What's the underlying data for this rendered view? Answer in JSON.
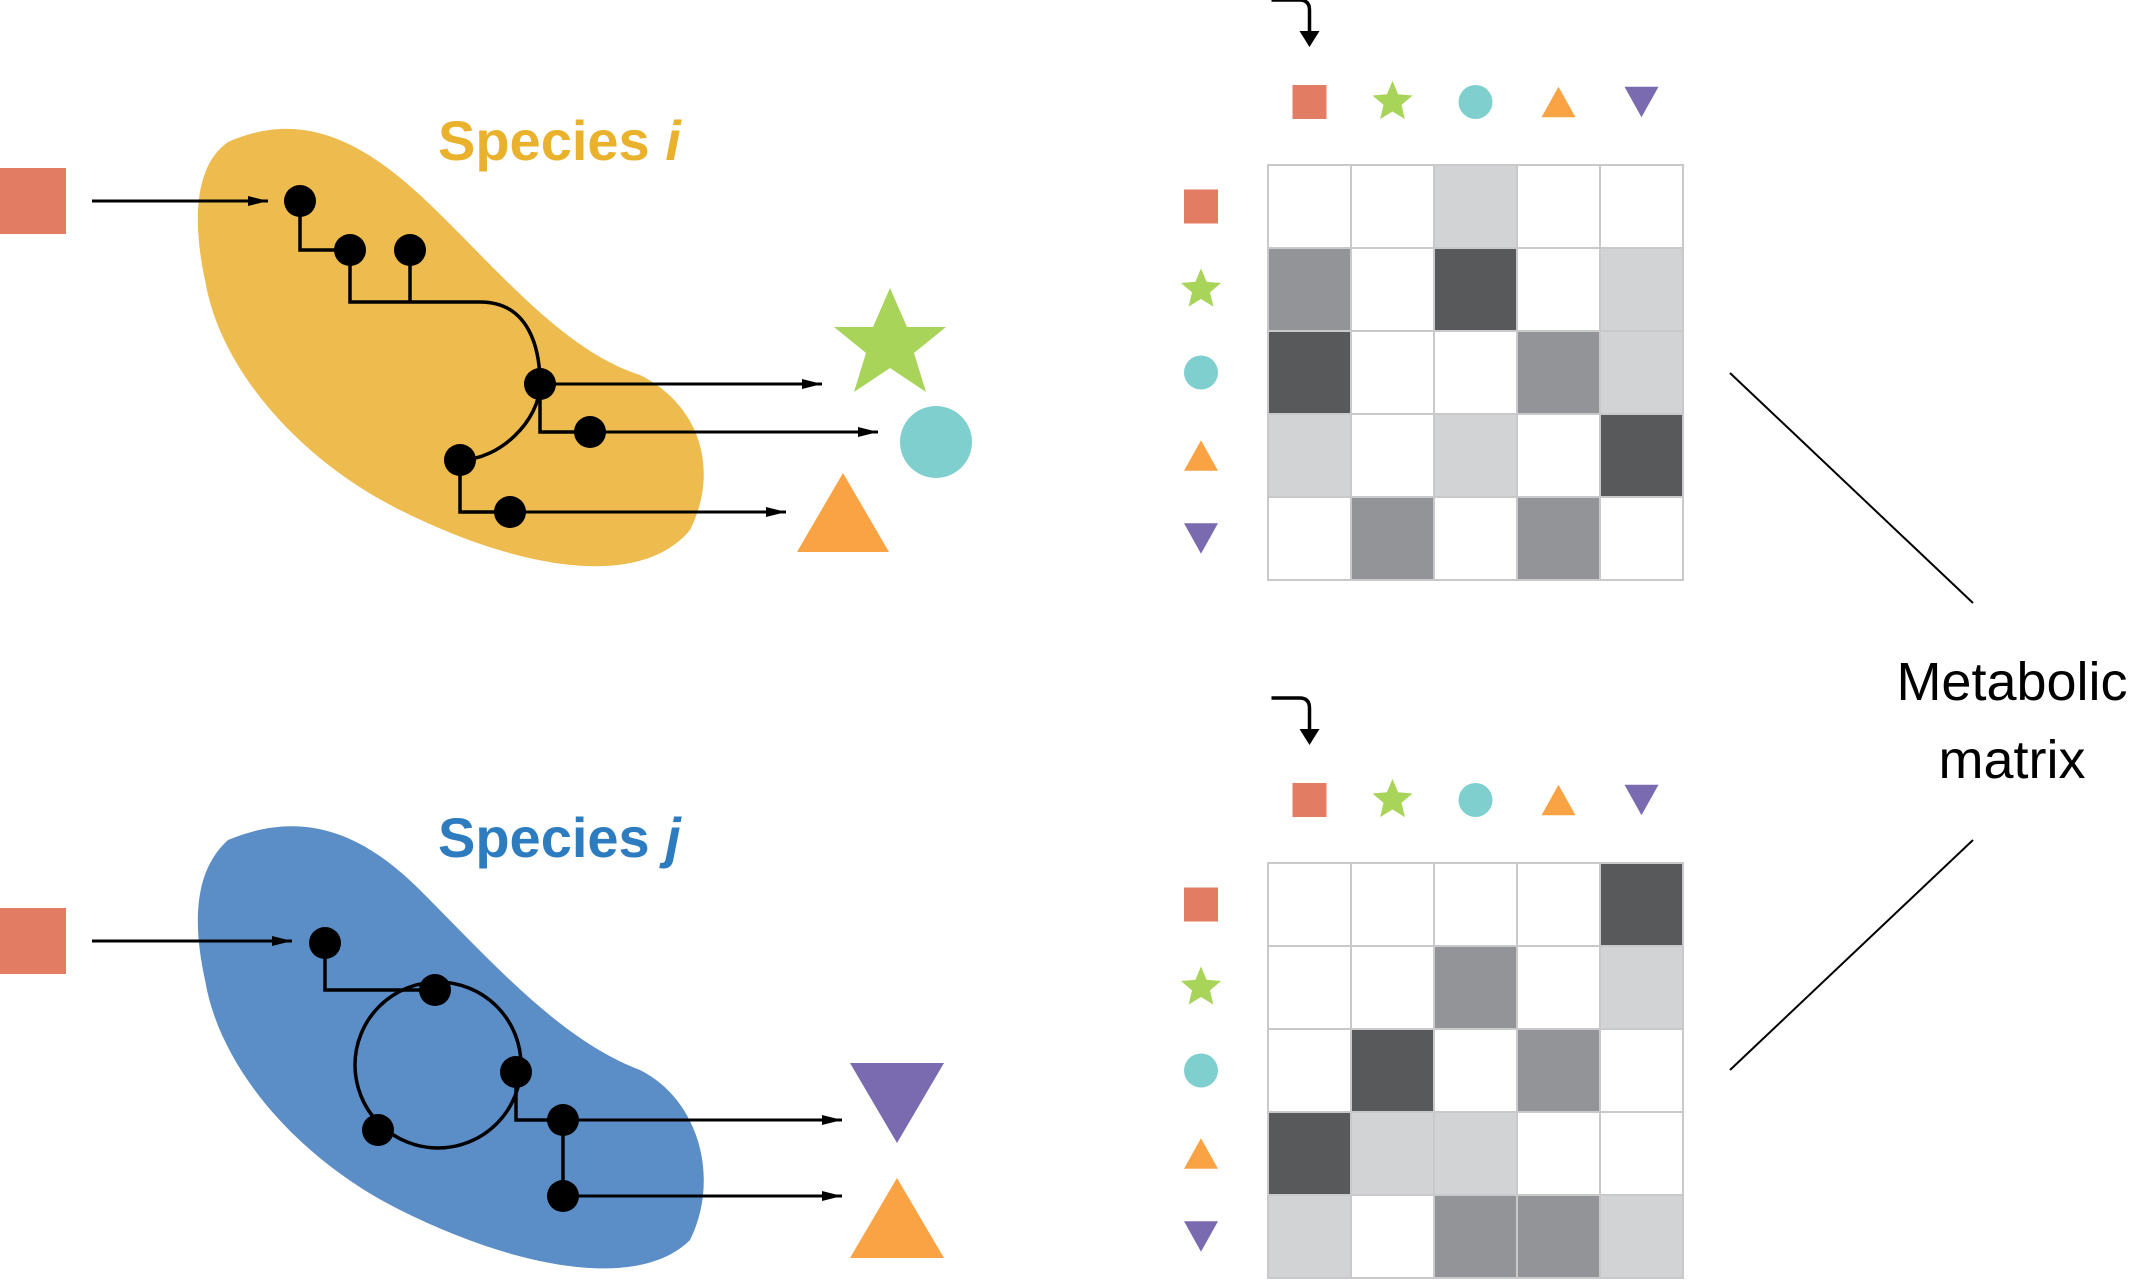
{
  "colors": {
    "square": "#E27C63",
    "star": "#A9D45A",
    "circle": "#7FCFCF",
    "triangle_up": "#F9A344",
    "triangle_down": "#7A6BB0",
    "species_i_body": "#EDBB4E",
    "species_i_text": "#EAB12C",
    "species_j_body": "#5B8DC6",
    "species_j_text": "#2E7CC0",
    "grid_line": "#c9c9cc",
    "shade": {
      "0": "#ffffff",
      "1": "#d2d3d5",
      "2": "#939497",
      "3": "#58595b"
    }
  },
  "icons": {
    "metabolites": [
      "square-icon",
      "star-icon",
      "circle-icon",
      "triangle-up-icon",
      "triangle-down-icon"
    ]
  },
  "species_i": {
    "label_prefix": "Species ",
    "label_var": "i"
  },
  "species_j": {
    "label_prefix": "Species ",
    "label_var": "j"
  },
  "matrix_i": {
    "values": [
      [
        0,
        0,
        1,
        0,
        0
      ],
      [
        2,
        0,
        3,
        0,
        1
      ],
      [
        3,
        0,
        0,
        2,
        1
      ],
      [
        1,
        0,
        1,
        0,
        3
      ],
      [
        0,
        2,
        0,
        2,
        0
      ]
    ]
  },
  "matrix_j": {
    "values": [
      [
        0,
        0,
        0,
        0,
        3
      ],
      [
        0,
        0,
        2,
        0,
        1
      ],
      [
        0,
        3,
        0,
        2,
        0
      ],
      [
        3,
        1,
        1,
        0,
        0
      ],
      [
        1,
        0,
        2,
        2,
        1
      ]
    ]
  },
  "metabolic_matrix": {
    "line1": "Metabolic",
    "line2": "matrix"
  }
}
